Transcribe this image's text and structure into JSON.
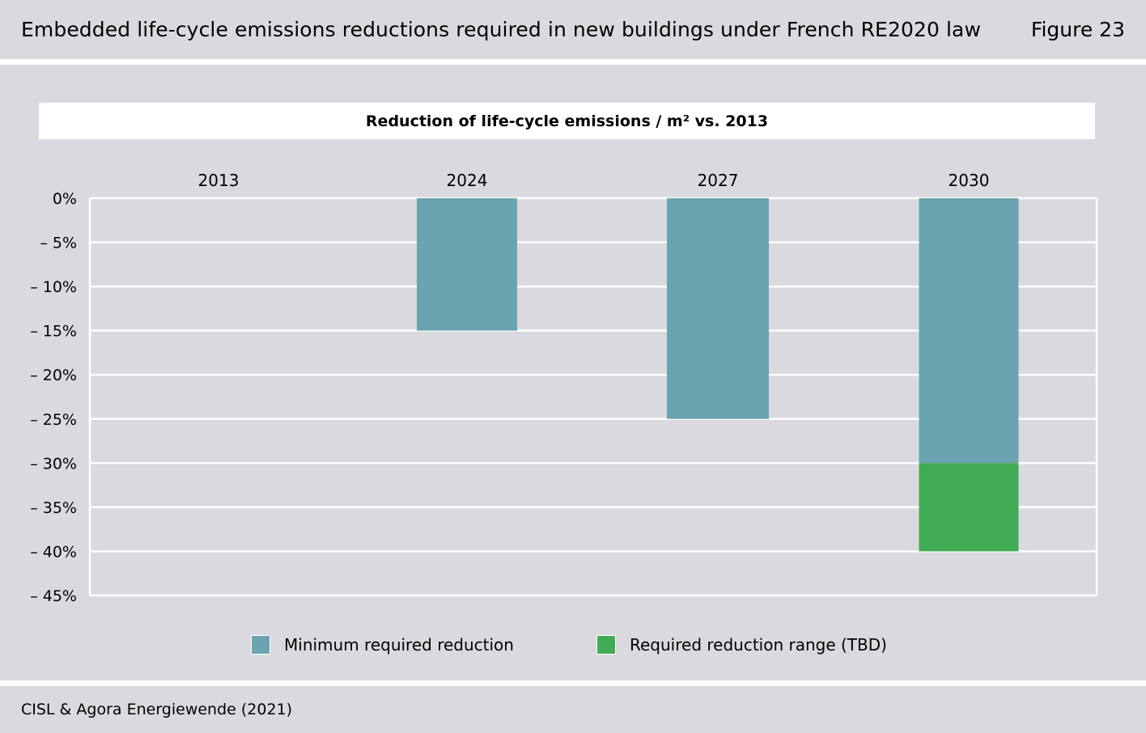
{
  "header": {
    "title": "Embedded life-cycle emissions reductions required in new buildings under French RE2020 law",
    "figure_label": "Figure 23"
  },
  "footer": {
    "source": "CISL & Agora Energiewende (2021)"
  },
  "colors": {
    "background": "#dad9df",
    "minimum": "#6aa4b0",
    "range": "#42ab55",
    "grid": "#ffffff"
  },
  "chart_data": {
    "type": "bar",
    "title": "Reduction of life-cycle emissions / m² vs. 2013",
    "categories": [
      "2013",
      "2024",
      "2027",
      "2030"
    ],
    "category_axis_position": "top",
    "series": [
      {
        "name": "Minimum required reduction",
        "values": [
          0,
          -15,
          -25,
          -30
        ]
      },
      {
        "name": "Required reduction range (TBD)",
        "values": [
          0,
          0,
          0,
          -10
        ]
      }
    ],
    "stacked": true,
    "ylim": [
      -45,
      0
    ],
    "yticks": [
      0,
      -5,
      -10,
      -15,
      -20,
      -25,
      -30,
      -35,
      -40,
      -45
    ],
    "ytick_labels": [
      "0%",
      "– 5%",
      "– 10%",
      "– 15%",
      "– 20%",
      "– 25%",
      "– 30%",
      "– 35%",
      "– 40%",
      "– 45%"
    ],
    "grid": true,
    "legend_position": "bottom-center"
  }
}
